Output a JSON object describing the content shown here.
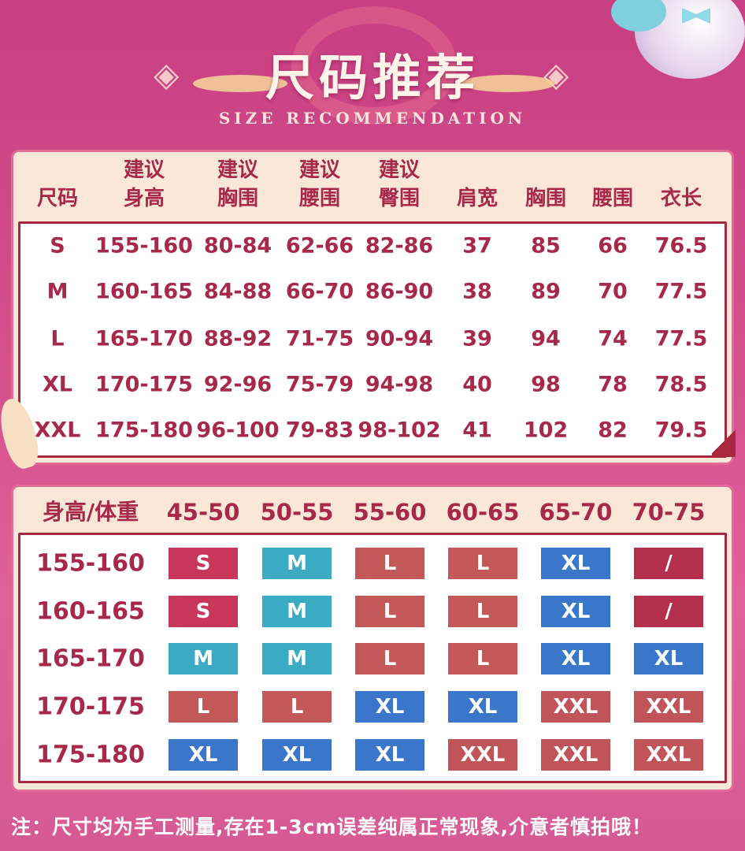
{
  "header": {
    "title": "尺码推荐",
    "subtitle": "SIZE RECOMMENDATION"
  },
  "size_table": {
    "headers": [
      [
        "",
        "尺码"
      ],
      [
        "建议",
        "身高"
      ],
      [
        "建议",
        "胸围"
      ],
      [
        "建议",
        "腰围"
      ],
      [
        "建议",
        "臀围"
      ],
      [
        "",
        "肩宽"
      ],
      [
        "",
        "胸围"
      ],
      [
        "",
        "腰围"
      ],
      [
        "",
        "衣长"
      ]
    ],
    "rows": [
      [
        "S",
        "155-160",
        "80-84",
        "62-66",
        "82-86",
        "37",
        "85",
        "66",
        "76.5"
      ],
      [
        "M",
        "160-165",
        "84-88",
        "66-70",
        "86-90",
        "38",
        "89",
        "70",
        "77.5"
      ],
      [
        "L",
        "165-170",
        "88-92",
        "71-75",
        "90-94",
        "39",
        "94",
        "74",
        "77.5"
      ],
      [
        "XL",
        "170-175",
        "92-96",
        "75-79",
        "94-98",
        "40",
        "98",
        "78",
        "78.5"
      ],
      [
        "XXL",
        "175-180",
        "96-100",
        "79-83",
        "98-102",
        "41",
        "102",
        "82",
        "79.5"
      ]
    ]
  },
  "weight_table": {
    "corner_label": "身高/体重",
    "weights": [
      "45-50",
      "50-55",
      "55-60",
      "60-65",
      "65-70",
      "70-75"
    ],
    "rows": [
      {
        "height": "155-160",
        "sizes": [
          "S",
          "M",
          "L",
          "L",
          "XL",
          "/"
        ]
      },
      {
        "height": "160-165",
        "sizes": [
          "S",
          "M",
          "L",
          "L",
          "XL",
          "/"
        ]
      },
      {
        "height": "165-170",
        "sizes": [
          "M",
          "M",
          "L",
          "L",
          "XL",
          "XL"
        ]
      },
      {
        "height": "170-175",
        "sizes": [
          "L",
          "L",
          "XL",
          "XL",
          "XXL",
          "XXL"
        ]
      },
      {
        "height": "175-180",
        "sizes": [
          "XL",
          "XL",
          "XL",
          "XXL",
          "XXL",
          "XXL"
        ]
      }
    ],
    "colors": {
      "S": "#c8375b",
      "M": "#3aabc2",
      "L": "#c35858",
      "XL": "#3a76c9",
      "XXL": "#c05458",
      "/": "#b42f4b"
    }
  },
  "footnote": "注：尺寸均为手工测量,存在1-3cm误差纯属正常现象,介意者慎拍哦！",
  "colors": {
    "background": "#d04a8a",
    "panel": "#fbe7d8",
    "text": "#a8284a"
  }
}
